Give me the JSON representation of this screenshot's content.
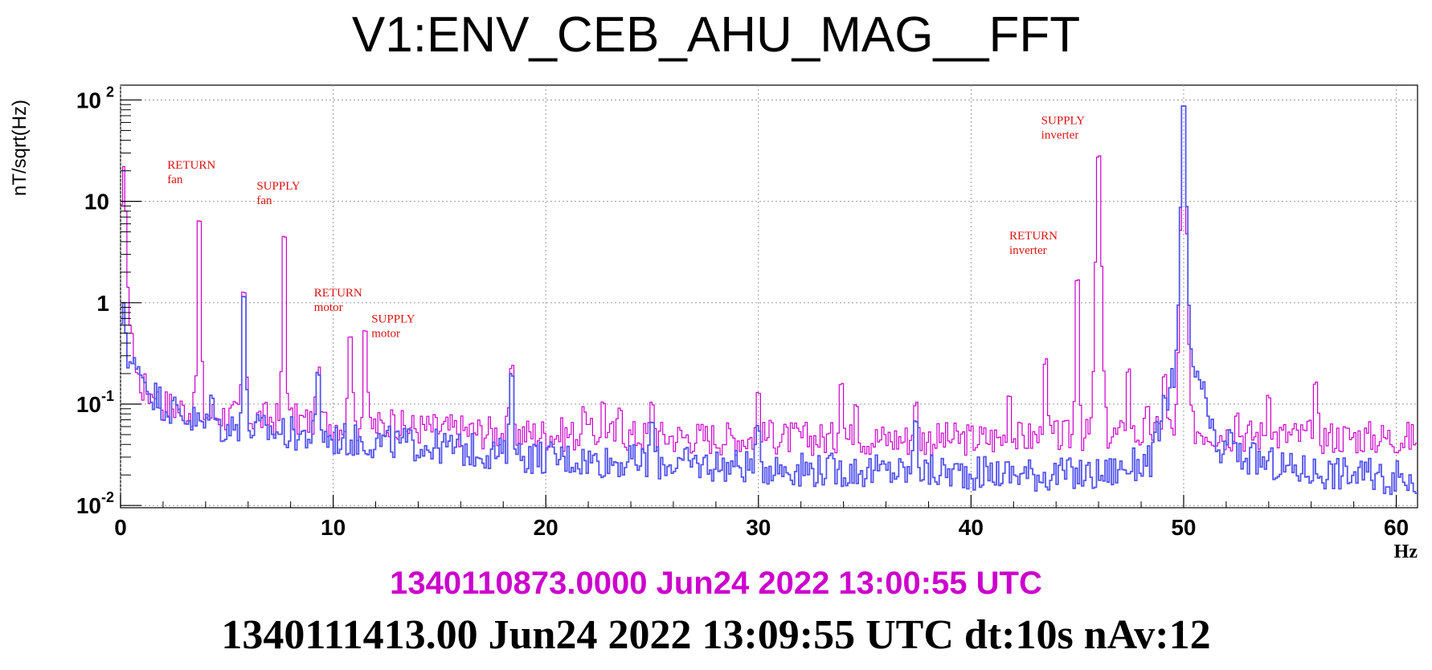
{
  "chart_data": {
    "type": "line",
    "title": "V1:ENV_CEB_AHU_MAG__FFT",
    "xlabel": "Hz",
    "ylabel": "nT/sqrt(Hz)",
    "xlim": [
      0,
      61
    ],
    "ylim": [
      0.0095,
      140
    ],
    "yscale": "log",
    "grid": true,
    "x_ticks": [
      "0",
      "10",
      "20",
      "30",
      "40",
      "50",
      "60"
    ],
    "x_tick_values": [
      0,
      10,
      20,
      30,
      40,
      50,
      60
    ],
    "y_ticks": [
      {
        "value": 0.01,
        "base": "10",
        "exp": "-2"
      },
      {
        "value": 0.1,
        "base": "10",
        "exp": "-1"
      },
      {
        "value": 1,
        "base": "1",
        "exp": ""
      },
      {
        "value": 10,
        "base": "10",
        "exp": ""
      },
      {
        "value": 100,
        "base": "10",
        "exp": "2"
      }
    ],
    "series": [
      {
        "color": "#cc00cc",
        "timestamp": "1340110873.0000 Jun24 2022 13:00:55 UTC",
        "baseline": [
          [
            0.3,
            0.35
          ],
          [
            1,
            0.15
          ],
          [
            2,
            0.1
          ],
          [
            4,
            0.08
          ],
          [
            6,
            0.075
          ],
          [
            10,
            0.065
          ],
          [
            14,
            0.058
          ],
          [
            18,
            0.052
          ],
          [
            25,
            0.048
          ],
          [
            30,
            0.046
          ],
          [
            40,
            0.045
          ],
          [
            48,
            0.05
          ],
          [
            50,
            0.06
          ],
          [
            52,
            0.05
          ],
          [
            61,
            0.046
          ]
        ],
        "peaks": [
          [
            0.15,
            22
          ],
          [
            0.5,
            0.6
          ],
          [
            1.6,
            0.12
          ],
          [
            3.7,
            16
          ],
          [
            5.8,
            2.3
          ],
          [
            7.7,
            11
          ],
          [
            9.3,
            0.28
          ],
          [
            10.8,
            0.75
          ],
          [
            11.5,
            0.85
          ],
          [
            12.8,
            0.09
          ],
          [
            18.4,
            0.31
          ],
          [
            21.8,
            0.1
          ],
          [
            22.7,
            0.12
          ],
          [
            23.5,
            0.1
          ],
          [
            25,
            0.12
          ],
          [
            30,
            0.16
          ],
          [
            30.6,
            0.07
          ],
          [
            33.9,
            0.22
          ],
          [
            34.6,
            0.12
          ],
          [
            37.4,
            0.12
          ],
          [
            41.8,
            0.15
          ],
          [
            43.5,
            0.38
          ],
          [
            45,
            3.8
          ],
          [
            46,
            42
          ],
          [
            47.4,
            0.3
          ],
          [
            48.3,
            0.1
          ],
          [
            49.1,
            0.25
          ],
          [
            50,
            140
          ],
          [
            52.5,
            0.09
          ],
          [
            54,
            0.15
          ],
          [
            56.2,
            0.2
          ]
        ]
      },
      {
        "color": "#5555ee",
        "timestamp": "1340111413.00 Jun24 2022 13:09:55 UTC dt:10s nAv:12",
        "baseline": [
          [
            0.3,
            0.3
          ],
          [
            1,
            0.17
          ],
          [
            2,
            0.1
          ],
          [
            4,
            0.06
          ],
          [
            6,
            0.058
          ],
          [
            10,
            0.045
          ],
          [
            14,
            0.04
          ],
          [
            18,
            0.032
          ],
          [
            22,
            0.028
          ],
          [
            28,
            0.025
          ],
          [
            34,
            0.022
          ],
          [
            40,
            0.021
          ],
          [
            46,
            0.02
          ],
          [
            48.5,
            0.028
          ],
          [
            49.5,
            0.2
          ],
          [
            50.7,
            0.2
          ],
          [
            51.5,
            0.035
          ],
          [
            55,
            0.023
          ],
          [
            61,
            0.018
          ]
        ],
        "peaks": [
          [
            0.15,
            1.0
          ],
          [
            1.0,
            0.2
          ],
          [
            4.3,
            0.14
          ],
          [
            5.8,
            2.2
          ],
          [
            9.3,
            0.27
          ],
          [
            18.4,
            0.3
          ],
          [
            25,
            0.08
          ],
          [
            30,
            0.07
          ],
          [
            37.4,
            0.09
          ],
          [
            50,
            130
          ],
          [
            52.2,
            0.06
          ]
        ]
      }
    ],
    "annotations": [
      {
        "lines": [
          "RETURN",
          "fan"
        ],
        "x": 2.2,
        "y": 21
      },
      {
        "lines": [
          "SUPPLY",
          "fan"
        ],
        "x": 6.4,
        "y": 13
      },
      {
        "lines": [
          "RETURN",
          "motor"
        ],
        "x": 9.1,
        "y": 1.15
      },
      {
        "lines": [
          "SUPPLY",
          "motor"
        ],
        "x": 11.8,
        "y": 0.64
      },
      {
        "lines": [
          "RETURN",
          "inverter"
        ],
        "x": 41.8,
        "y": 4.2
      },
      {
        "lines": [
          "SUPPLY",
          "inverter"
        ],
        "x": 43.3,
        "y": 58
      }
    ],
    "annotation_color": "#dd1111"
  }
}
